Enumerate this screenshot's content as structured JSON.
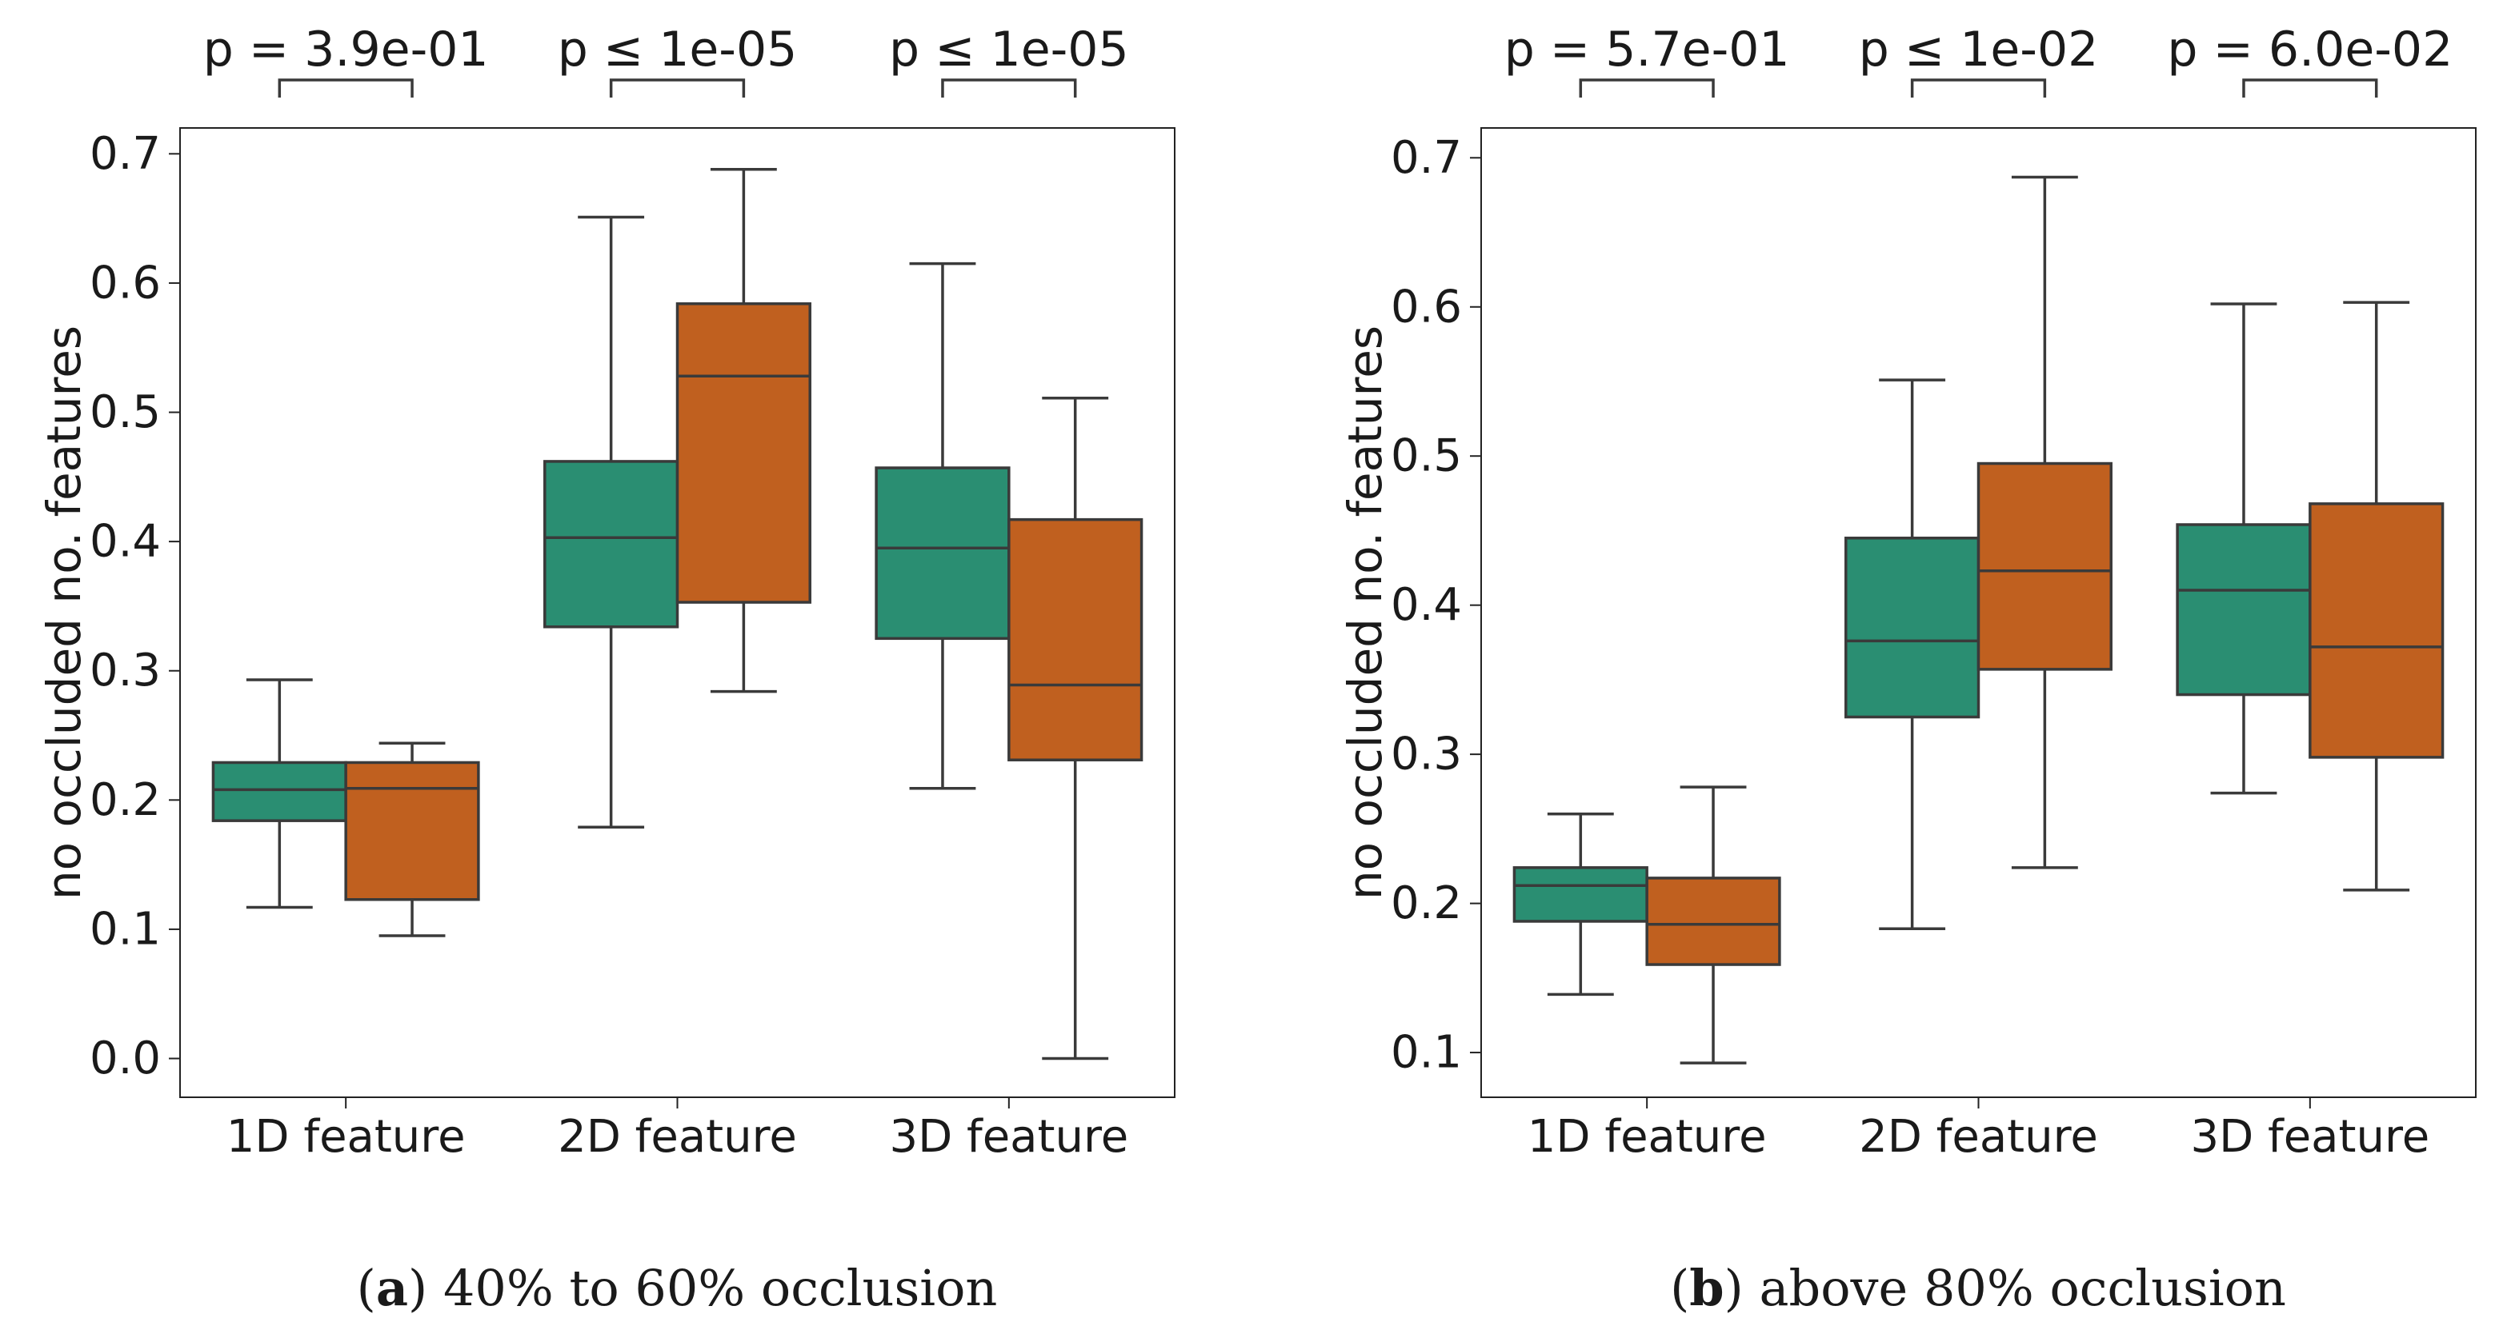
{
  "chart_data": [
    {
      "type": "box",
      "caption": {
        "letter": "a",
        "text": "40% to 60% occlusion"
      },
      "ylabel": "no occluded no. features",
      "xlabel": "",
      "ylim": [
        -0.03,
        0.72
      ],
      "yticks": [
        "0.0",
        "0.1",
        "0.2",
        "0.3",
        "0.4",
        "0.5",
        "0.6",
        "0.7"
      ],
      "categories": [
        "1D feature",
        "2D feature",
        "3D feature"
      ],
      "grid": false,
      "series": [
        {
          "color": "#2a8e72",
          "boxes": [
            {
              "whisker_low": 0.117,
              "q1": 0.184,
              "median": 0.208,
              "q3": 0.229,
              "whisker_high": 0.293
            },
            {
              "whisker_low": 0.179,
              "q1": 0.334,
              "median": 0.403,
              "q3": 0.462,
              "whisker_high": 0.651
            },
            {
              "whisker_low": 0.209,
              "q1": 0.325,
              "median": 0.395,
              "q3": 0.457,
              "whisker_high": 0.615
            }
          ]
        },
        {
          "color": "#c0601f",
          "boxes": [
            {
              "whisker_low": 0.095,
              "q1": 0.123,
              "median": 0.209,
              "q3": 0.229,
              "whisker_high": 0.244
            },
            {
              "whisker_low": 0.284,
              "q1": 0.353,
              "median": 0.528,
              "q3": 0.584,
              "whisker_high": 0.688
            },
            {
              "whisker_low": 0.0,
              "q1": 0.231,
              "median": 0.289,
              "q3": 0.417,
              "whisker_high": 0.511
            }
          ]
        }
      ],
      "annotations": [
        "p = 3.9e-01",
        "p ≤ 1e-05",
        "p ≤ 1e-05"
      ]
    },
    {
      "type": "box",
      "caption": {
        "letter": "b",
        "text": "above 80% occlusion"
      },
      "ylabel": "no occluded no. features",
      "xlabel": "",
      "ylim": [
        0.07,
        0.72
      ],
      "yticks": [
        "0.1",
        "0.2",
        "0.3",
        "0.4",
        "0.5",
        "0.6",
        "0.7"
      ],
      "categories": [
        "1D feature",
        "2D feature",
        "3D feature"
      ],
      "grid": false,
      "series": [
        {
          "color": "#2a8e72",
          "boxes": [
            {
              "whisker_low": 0.139,
              "q1": 0.188,
              "median": 0.212,
              "q3": 0.224,
              "whisker_high": 0.26
            },
            {
              "whisker_low": 0.183,
              "q1": 0.325,
              "median": 0.376,
              "q3": 0.445,
              "whisker_high": 0.551
            },
            {
              "whisker_low": 0.274,
              "q1": 0.34,
              "median": 0.41,
              "q3": 0.454,
              "whisker_high": 0.602
            }
          ]
        },
        {
          "color": "#c0601f",
          "boxes": [
            {
              "whisker_low": 0.093,
              "q1": 0.159,
              "median": 0.186,
              "q3": 0.217,
              "whisker_high": 0.278
            },
            {
              "whisker_low": 0.224,
              "q1": 0.357,
              "median": 0.423,
              "q3": 0.495,
              "whisker_high": 0.687
            },
            {
              "whisker_low": 0.209,
              "q1": 0.298,
              "median": 0.372,
              "q3": 0.468,
              "whisker_high": 0.603
            }
          ]
        }
      ],
      "annotations": [
        "p = 5.7e-01",
        "p ≤ 1e-02",
        "p = 6.0e-02"
      ]
    }
  ]
}
